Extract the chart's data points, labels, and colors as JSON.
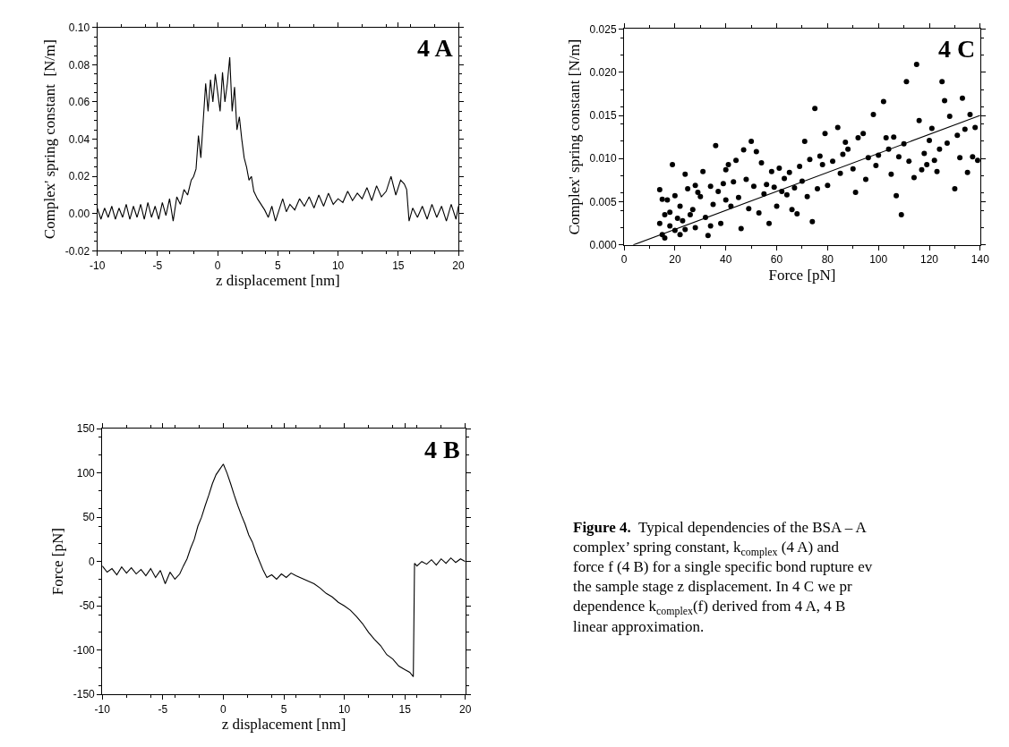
{
  "chart_data": [
    {
      "type": "line",
      "title": "4 A",
      "xlabel": "z displacement [nm]",
      "ylabel": "Complex' spring constant  [N/m]",
      "xlim": [
        -10,
        20
      ],
      "ylim": [
        -0.02,
        0.1
      ],
      "xticks": [
        -10,
        -5,
        0,
        5,
        10,
        15,
        20
      ],
      "yticks": [
        {
          "value": -0.02,
          "label": "-0.02"
        },
        {
          "value": 0,
          "label": "0.00"
        },
        {
          "value": 0.02,
          "label": "0.02"
        },
        {
          "value": 0.04,
          "label": "0.04"
        },
        {
          "value": 0.06,
          "label": "0.06"
        },
        {
          "value": 0.08,
          "label": "0.08"
        },
        {
          "value": 0.1,
          "label": "0.10"
        }
      ],
      "marker": "none",
      "line_style": "solid",
      "series": [
        {
          "color": "#000000",
          "x": [
            -10,
            -9.7,
            -9.4,
            -9.1,
            -8.8,
            -8.5,
            -8.2,
            -7.9,
            -7.6,
            -7.3,
            -7.0,
            -6.7,
            -6.4,
            -6.1,
            -5.8,
            -5.5,
            -5.2,
            -4.9,
            -4.6,
            -4.3,
            -4.0,
            -3.7,
            -3.4,
            -3.1,
            -2.8,
            -2.5,
            -2.2,
            -2.0,
            -1.8,
            -1.6,
            -1.4,
            -1.2,
            -1.0,
            -0.8,
            -0.6,
            -0.4,
            -0.2,
            0.0,
            0.2,
            0.4,
            0.6,
            0.8,
            1.0,
            1.2,
            1.4,
            1.6,
            1.8,
            2.0,
            2.2,
            2.4,
            2.6,
            2.8,
            3.0,
            3.3,
            3.6,
            3.9,
            4.2,
            4.5,
            4.8,
            5.1,
            5.4,
            5.7,
            6.0,
            6.4,
            6.8,
            7.2,
            7.6,
            8.0,
            8.4,
            8.8,
            9.2,
            9.6,
            10.0,
            10.4,
            10.8,
            11.2,
            11.6,
            12.0,
            12.4,
            12.8,
            13.2,
            13.6,
            14.0,
            14.4,
            14.8,
            15.2,
            15.5,
            15.7,
            15.9,
            16.2,
            16.6,
            17.0,
            17.4,
            17.8,
            18.2,
            18.6,
            19.0,
            19.4,
            19.8,
            20.0
          ],
          "values": [
            0.003,
            -0.003,
            0.003,
            -0.002,
            0.004,
            -0.003,
            0.003,
            -0.002,
            0.005,
            -0.003,
            0.004,
            -0.002,
            0.005,
            -0.003,
            0.006,
            -0.002,
            0.004,
            -0.003,
            0.006,
            -0.001,
            0.008,
            -0.004,
            0.009,
            0.005,
            0.013,
            0.01,
            0.018,
            0.02,
            0.024,
            0.042,
            0.03,
            0.05,
            0.07,
            0.055,
            0.072,
            0.06,
            0.075,
            0.065,
            0.055,
            0.076,
            0.06,
            0.07,
            0.084,
            0.055,
            0.068,
            0.045,
            0.052,
            0.04,
            0.03,
            0.025,
            0.018,
            0.02,
            0.012,
            0.008,
            0.005,
            0.002,
            -0.002,
            0.004,
            -0.004,
            0.002,
            0.008,
            0.001,
            0.005,
            0.002,
            0.008,
            0.004,
            0.009,
            0.003,
            0.01,
            0.004,
            0.011,
            0.005,
            0.008,
            0.006,
            0.012,
            0.007,
            0.011,
            0.008,
            0.014,
            0.007,
            0.015,
            0.009,
            0.012,
            0.02,
            0.01,
            0.018,
            0.016,
            0.013,
            -0.004,
            0.003,
            -0.002,
            0.004,
            -0.003,
            0.005,
            -0.002,
            0.004,
            -0.004,
            0.005,
            -0.003,
            0.004
          ]
        }
      ]
    },
    {
      "type": "scatter",
      "title": "4 C",
      "xlabel": "Force [pN]",
      "ylabel": "Complex' spring constant [N/m]",
      "xlim": [
        0,
        140
      ],
      "ylim": [
        0,
        0.025
      ],
      "xticks": [
        0,
        20,
        40,
        60,
        80,
        100,
        120,
        140
      ],
      "yticks": [
        {
          "value": 0,
          "label": "0.000"
        },
        {
          "value": 0.005,
          "label": "0.005"
        },
        {
          "value": 0.01,
          "label": "0.010"
        },
        {
          "value": 0.015,
          "label": "0.015"
        },
        {
          "value": 0.02,
          "label": "0.020"
        },
        {
          "value": 0.025,
          "label": "0.025"
        }
      ],
      "marker": "circle",
      "series": [
        {
          "color": "#000000",
          "x": [
            14,
            14,
            15,
            15,
            16,
            16,
            17,
            18,
            18,
            19,
            20,
            20,
            21,
            22,
            22,
            23,
            24,
            24,
            25,
            26,
            27,
            28,
            28,
            29,
            30,
            31,
            32,
            33,
            34,
            34,
            35,
            36,
            37,
            38,
            39,
            40,
            40,
            41,
            42,
            43,
            44,
            45,
            46,
            47,
            48,
            49,
            50,
            51,
            52,
            53,
            54,
            55,
            56,
            57,
            58,
            59,
            60,
            61,
            62,
            63,
            64,
            65,
            66,
            67,
            68,
            69,
            70,
            71,
            72,
            73,
            74,
            75,
            76,
            77,
            78,
            79,
            80,
            82,
            84,
            85,
            86,
            87,
            88,
            90,
            91,
            92,
            94,
            95,
            96,
            98,
            99,
            100,
            102,
            103,
            104,
            105,
            106,
            107,
            108,
            109,
            110,
            111,
            112,
            114,
            115,
            116,
            117,
            118,
            119,
            120,
            121,
            122,
            123,
            124,
            125,
            126,
            127,
            128,
            130,
            131,
            132,
            133,
            134,
            135,
            136,
            137,
            138,
            139
          ],
          "values": [
            0.0064,
            0.0025,
            0.0053,
            0.0012,
            0.0035,
            0.0008,
            0.0052,
            0.0022,
            0.0038,
            0.0093,
            0.0017,
            0.0057,
            0.0031,
            0.0012,
            0.0045,
            0.0028,
            0.0082,
            0.0018,
            0.0065,
            0.0035,
            0.0041,
            0.0069,
            0.002,
            0.0061,
            0.0056,
            0.0085,
            0.0032,
            0.0011,
            0.0068,
            0.0022,
            0.0047,
            0.0115,
            0.0062,
            0.0025,
            0.0071,
            0.0087,
            0.0052,
            0.0093,
            0.0045,
            0.0073,
            0.0098,
            0.0055,
            0.0019,
            0.011,
            0.0076,
            0.0042,
            0.012,
            0.0068,
            0.0108,
            0.0037,
            0.0095,
            0.0059,
            0.007,
            0.0025,
            0.0085,
            0.0067,
            0.0045,
            0.0089,
            0.0062,
            0.0077,
            0.0058,
            0.0084,
            0.0041,
            0.0066,
            0.0036,
            0.0091,
            0.0074,
            0.012,
            0.0056,
            0.0099,
            0.0027,
            0.0158,
            0.0065,
            0.0103,
            0.0093,
            0.0129,
            0.0069,
            0.0097,
            0.0136,
            0.0083,
            0.0105,
            0.0119,
            0.0111,
            0.0088,
            0.0061,
            0.0124,
            0.0129,
            0.0076,
            0.0101,
            0.0151,
            0.0092,
            0.0104,
            0.0166,
            0.0124,
            0.0111,
            0.0082,
            0.0125,
            0.0057,
            0.0102,
            0.0035,
            0.0117,
            0.0189,
            0.0097,
            0.0078,
            0.0209,
            0.0144,
            0.0087,
            0.0106,
            0.0093,
            0.0121,
            0.0135,
            0.0098,
            0.0085,
            0.0111,
            0.0189,
            0.0167,
            0.0118,
            0.0149,
            0.0065,
            0.0127,
            0.0101,
            0.017,
            0.0134,
            0.0084,
            0.0151,
            0.0102,
            0.0136,
            0.0098
          ]
        },
        {
          "type": "line",
          "color": "#000000",
          "marker": "none",
          "x": [
            3.6,
            140
          ],
          "values": [
            0,
            0.015
          ]
        }
      ]
    },
    {
      "type": "line",
      "title": "4 B",
      "xlabel": "z displacement [nm]",
      "ylabel": "Force [pN]",
      "xlim": [
        -10,
        20
      ],
      "ylim": [
        -150,
        150
      ],
      "xticks": [
        -10,
        -5,
        0,
        5,
        10,
        15,
        20
      ],
      "yticks": [
        -150,
        -100,
        -50,
        0,
        50,
        100,
        150
      ],
      "marker": "none",
      "line_style": "solid",
      "series": [
        {
          "color": "#000000",
          "x": [
            -10,
            -9.6,
            -9.2,
            -8.8,
            -8.4,
            -8.0,
            -7.6,
            -7.2,
            -6.8,
            -6.4,
            -6.0,
            -5.6,
            -5.2,
            -4.8,
            -4.4,
            -4.0,
            -3.6,
            -3.3,
            -3.0,
            -2.7,
            -2.4,
            -2.1,
            -1.8,
            -1.5,
            -1.2,
            -0.9,
            -0.6,
            -0.3,
            0.0,
            0.3,
            0.6,
            0.9,
            1.2,
            1.5,
            1.8,
            2.1,
            2.4,
            2.7,
            3.0,
            3.3,
            3.6,
            4.0,
            4.4,
            4.8,
            5.2,
            5.6,
            6.0,
            6.5,
            7.0,
            7.5,
            8.0,
            8.5,
            9.0,
            9.5,
            10.0,
            10.5,
            11.0,
            11.5,
            12.0,
            12.5,
            13.0,
            13.5,
            14.0,
            14.5,
            15.0,
            15.4,
            15.7,
            15.8,
            16.0,
            16.4,
            16.8,
            17.2,
            17.6,
            18.0,
            18.4,
            18.8,
            19.2,
            19.6,
            20.0
          ],
          "values": [
            -5,
            -12,
            -8,
            -15,
            -6,
            -13,
            -7,
            -14,
            -9,
            -16,
            -8,
            -18,
            -10,
            -25,
            -12,
            -20,
            -14,
            -5,
            3,
            15,
            25,
            40,
            50,
            63,
            75,
            88,
            98,
            104,
            110,
            100,
            88,
            75,
            63,
            52,
            42,
            30,
            22,
            10,
            0,
            -10,
            -18,
            -15,
            -20,
            -14,
            -18,
            -13,
            -16,
            -19,
            -22,
            -25,
            -30,
            -36,
            -40,
            -46,
            -50,
            -55,
            -62,
            -70,
            -80,
            -88,
            -95,
            -105,
            -110,
            -118,
            -122,
            -125,
            -130,
            -2,
            -5,
            0,
            -3,
            2,
            -4,
            3,
            -2,
            4,
            -1,
            3,
            0
          ]
        }
      ]
    },
    {
      "type": "other",
      "annotations": [
        "Figure 4.  Typical dependencies of the BSA – A",
        "complex’ spring constant, k$_{complex}$ (4 A) and",
        "force f (4 B) for a single specific bond rupture ev",
        "the sample stage z displacement. In 4 C we pr",
        "dependence k$_{complex}$(f) derived from 4 A, 4 B",
        "linear approximation."
      ]
    }
  ]
}
